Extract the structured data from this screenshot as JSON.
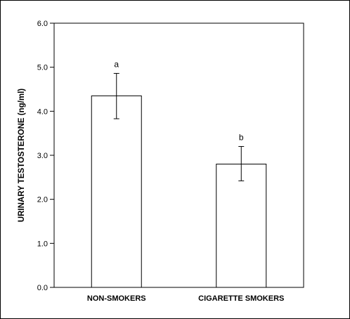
{
  "chart_data": {
    "type": "bar",
    "categories": [
      "NON-SMOKERS",
      "CIGARETTE SMOKERS"
    ],
    "values": [
      4.35,
      2.8
    ],
    "error_upper": [
      4.86,
      3.2
    ],
    "error_lower": [
      3.83,
      2.42
    ],
    "significance_labels": [
      "a",
      "b"
    ],
    "ylabel": "URINARY TESTOSTERONE (ng/ml)",
    "xlabel": "",
    "ylim": [
      0,
      6
    ],
    "yticks": [
      0,
      1,
      2,
      3,
      4,
      5,
      6
    ],
    "ytick_labels": [
      "0.0",
      "1.0",
      "2.0",
      "3.0",
      "4.0",
      "5.0",
      "6.0"
    ],
    "grid": false,
    "bar_fill": "#ffffff",
    "bar_edge": "#000000"
  }
}
